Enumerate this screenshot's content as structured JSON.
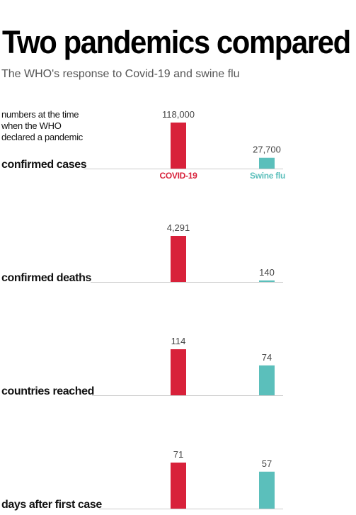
{
  "header": {
    "title": "Two pandemics compared",
    "subtitle": "The WHO's response to Covid-19 and swine flu",
    "note": "numbers at the time\nwhen the WHO\ndeclared a pandemic"
  },
  "colors": {
    "covid": "#d8213a",
    "swine": "#5bbfbb",
    "baseline": "#cccccc"
  },
  "chart_data": [
    {
      "type": "bar",
      "title": "confirmed cases",
      "series": [
        {
          "name": "COVID-19",
          "value": 118000,
          "label": "118,000"
        },
        {
          "name": "Swine flu",
          "value": 27700,
          "label": "27,700"
        }
      ]
    },
    {
      "type": "bar",
      "title": "confirmed deaths",
      "series": [
        {
          "name": "COVID-19",
          "value": 4291,
          "label": "4,291"
        },
        {
          "name": "Swine flu",
          "value": 140,
          "label": "140"
        }
      ]
    },
    {
      "type": "bar",
      "title": "countries reached",
      "series": [
        {
          "name": "COVID-19",
          "value": 114,
          "label": "114"
        },
        {
          "name": "Swine flu",
          "value": 74,
          "label": "74"
        }
      ]
    },
    {
      "type": "bar",
      "title": "days after first case",
      "series": [
        {
          "name": "COVID-19",
          "value": 71,
          "label": "71"
        },
        {
          "name": "Swine flu",
          "value": 57,
          "label": "57"
        }
      ]
    }
  ]
}
